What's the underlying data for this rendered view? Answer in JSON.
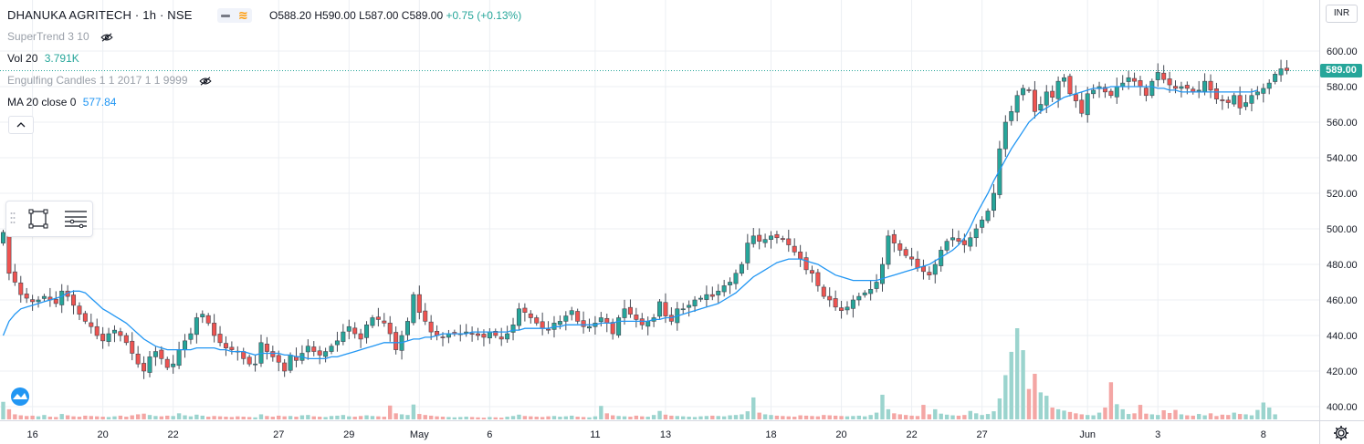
{
  "header": {
    "symbol": "DHANUKA AGRITECH · 1h · NSE",
    "ohlc": "O588.20  H590.00  L587.00  C589.00",
    "change": "+0.75 (+0.13%)"
  },
  "indicators": {
    "supertrend": "SuperTrend 3 10",
    "vol_label": "Vol 20",
    "vol_value": "3.791K",
    "engulfing": "Engulfing Candles 1 1 2017 1 1 9999",
    "ma_label": "MA 20 close 0",
    "ma_value": "577.84"
  },
  "currency": "INR",
  "last_price": "589.00",
  "colors": {
    "up": "#26a69a",
    "down": "#ef5350",
    "ma_line": "#2196f3",
    "vol_up": "#9bd4ce",
    "vol_down": "#f4a6a4",
    "grid": "#eceff3"
  },
  "icons": [
    "eye-hidden-icon",
    "rectangle-tool-icon",
    "lines-tool-icon",
    "chevron-up-icon",
    "gear-icon",
    "tradingview-logo-icon"
  ],
  "chart_data": {
    "type": "candlestick",
    "y_axis": {
      "ticks": [
        600,
        580,
        560,
        540,
        520,
        500,
        480,
        460,
        440,
        420,
        400
      ],
      "tick_labels": [
        "600.00",
        "580.00",
        "560.00",
        "540.00",
        "520.00",
        "500.00",
        "480.00",
        "460.00",
        "440.00",
        "420.00",
        "400.00"
      ],
      "range": [
        396,
        612
      ]
    },
    "x_axis": {
      "tick_labels": [
        "16",
        "20",
        "22",
        "27",
        "29",
        "May",
        "6",
        "11",
        "13",
        "18",
        "20",
        "22",
        "27",
        "Jun",
        "3",
        "8"
      ],
      "tick_index": [
        5,
        17,
        29,
        47,
        59,
        71,
        83,
        101,
        113,
        131,
        143,
        155,
        167,
        185,
        197,
        215
      ]
    },
    "closes": [
      498,
      475,
      470,
      463,
      461,
      459,
      460,
      462,
      460,
      458,
      465,
      462,
      457,
      452,
      448,
      445,
      440,
      437,
      441,
      443,
      440,
      436,
      430,
      424,
      420,
      428,
      431,
      427,
      422,
      424,
      432,
      437,
      441,
      450,
      452,
      447,
      440,
      436,
      433,
      432,
      431,
      427,
      424,
      424,
      436,
      431,
      428,
      425,
      420,
      429,
      426,
      430,
      434,
      431,
      429,
      431,
      434,
      437,
      442,
      445,
      441,
      438,
      446,
      450,
      449,
      447,
      441,
      432,
      440,
      448,
      463,
      453,
      448,
      442,
      440,
      439,
      441,
      441,
      441,
      442,
      441,
      440,
      439,
      442,
      440,
      438,
      441,
      446,
      455,
      453,
      450,
      447,
      444,
      443,
      447,
      448,
      451,
      454,
      448,
      445,
      445,
      447,
      450,
      447,
      441,
      450,
      455,
      452,
      449,
      446,
      448,
      450,
      459,
      451,
      448,
      455,
      455,
      457,
      460,
      461,
      463,
      462,
      465,
      468,
      470,
      475,
      480,
      492,
      496,
      493,
      494,
      496,
      495,
      494,
      491,
      487,
      483,
      477,
      475,
      468,
      462,
      460,
      456,
      454,
      456,
      460,
      462,
      464,
      466,
      470,
      480,
      496,
      492,
      488,
      485,
      483,
      478,
      476,
      474,
      480,
      488,
      493,
      495,
      493,
      491,
      495,
      500,
      505,
      510,
      520,
      545,
      560,
      566,
      575,
      579,
      578,
      566,
      570,
      577,
      574,
      583,
      585,
      576,
      572,
      565,
      576,
      578,
      580,
      577,
      575,
      580,
      582,
      585,
      583,
      580,
      575,
      583,
      588,
      584,
      581,
      579,
      580,
      579,
      577,
      578,
      583,
      578,
      573,
      572,
      571,
      575,
      568,
      571,
      575,
      577,
      579,
      582,
      587,
      590,
      589
    ],
    "ma20": [
      440,
      448,
      452,
      455,
      456,
      457,
      458,
      459,
      460,
      461,
      462,
      464,
      465,
      465,
      464,
      461,
      458,
      455,
      453,
      451,
      449,
      447,
      444,
      441,
      438,
      436,
      434,
      433,
      432,
      432,
      432,
      432,
      432,
      433,
      433,
      433,
      433,
      432,
      432,
      431,
      431,
      431,
      430,
      429,
      430,
      430,
      430,
      430,
      429,
      429,
      428,
      428,
      427,
      427,
      427,
      427,
      428,
      428,
      429,
      430,
      431,
      432,
      433,
      434,
      435,
      436,
      436,
      436,
      436,
      437,
      438,
      438,
      439,
      439,
      440,
      441,
      441,
      441,
      441,
      441,
      442,
      442,
      442,
      442,
      442,
      442,
      442,
      443,
      443,
      444,
      444,
      444,
      444,
      444,
      445,
      445,
      446,
      446,
      446,
      446,
      446,
      446,
      447,
      447,
      447,
      448,
      448,
      448,
      448,
      448,
      448,
      449,
      449,
      450,
      450,
      451,
      452,
      453,
      454,
      455,
      456,
      457,
      458,
      460,
      462,
      464,
      467,
      470,
      473,
      475,
      477,
      479,
      481,
      482,
      483,
      483,
      483,
      482,
      481,
      480,
      478,
      476,
      474,
      473,
      472,
      471,
      471,
      471,
      471,
      471,
      472,
      473,
      474,
      475,
      476,
      477,
      478,
      479,
      480,
      482,
      484,
      486,
      488,
      491,
      495,
      501,
      508,
      514,
      520,
      527,
      533,
      539,
      545,
      550,
      555,
      560,
      563,
      566,
      568,
      570,
      572,
      574,
      575,
      576,
      577,
      578,
      579,
      579,
      579,
      580,
      580,
      580,
      580,
      580,
      580,
      580,
      580,
      579,
      579,
      578,
      578,
      577,
      577,
      577,
      577,
      577,
      577,
      577,
      577,
      577,
      577,
      577,
      577,
      577,
      578
    ],
    "volumes": [
      5.2,
      3.0,
      1.5,
      1.2,
      1.0,
      1.1,
      0.9,
      1.3,
      0.8,
      0.7,
      1.6,
      1.2,
      0.9,
      0.8,
      1.1,
      1.0,
      0.9,
      0.8,
      0.7,
      0.9,
      1.1,
      0.8,
      1.2,
      1.5,
      1.7,
      1.3,
      1.0,
      0.9,
      1.1,
      1.0,
      1.8,
      1.2,
      0.9,
      1.4,
      1.1,
      0.8,
      1.0,
      0.9,
      0.8,
      0.7,
      0.9,
      0.8,
      0.7,
      0.6,
      1.5,
      1.0,
      0.8,
      1.1,
      0.9,
      1.0,
      0.8,
      1.2,
      1.3,
      0.9,
      0.8,
      0.7,
      1.0,
      1.1,
      1.3,
      0.9,
      0.8,
      1.0,
      1.2,
      1.0,
      0.9,
      0.8,
      4.1,
      1.8,
      1.5,
      1.3,
      4.4,
      1.6,
      1.3,
      1.1,
      0.9,
      0.8,
      0.7,
      0.6,
      0.7,
      0.8,
      0.7,
      0.6,
      0.5,
      0.7,
      0.6,
      0.5,
      0.8,
      1.0,
      1.4,
      1.0,
      0.9,
      0.8,
      0.7,
      0.9,
      1.0,
      0.8,
      0.9,
      1.1,
      0.8,
      0.7,
      0.6,
      0.9,
      4.0,
      1.8,
      1.2,
      1.0,
      0.9,
      0.8,
      1.1,
      0.9,
      0.8,
      1.3,
      2.5,
      1.4,
      1.1,
      1.0,
      0.9,
      0.8,
      0.7,
      0.9,
      1.0,
      1.1,
      1.0,
      0.9,
      1.2,
      1.3,
      1.5,
      2.4,
      6.5,
      2.0,
      1.5,
      1.3,
      1.1,
      1.0,
      0.9,
      0.8,
      1.2,
      1.1,
      1.0,
      0.9,
      1.3,
      1.2,
      1.1,
      1.0,
      0.9,
      1.0,
      1.1,
      0.9,
      1.3,
      2.0,
      7.3,
      3.0,
      1.8,
      1.5,
      1.3,
      1.1,
      1.0,
      4.3,
      1.5,
      3.0,
      1.7,
      1.4,
      1.2,
      1.1,
      1.3,
      2.5,
      1.8,
      1.3,
      1.6,
      2.4,
      6.2,
      13.1,
      20.0,
      27.0,
      20.5,
      9.0,
      13.5,
      8.0,
      7.0,
      3.5,
      3.0,
      2.6,
      2.2,
      1.8,
      1.5,
      1.3,
      1.2,
      2.0,
      3.5,
      11.0,
      4.5,
      3.0,
      1.6,
      1.8,
      4.3,
      1.7,
      1.5,
      1.3,
      2.7,
      1.9,
      2.8,
      1.5,
      1.2,
      1.1,
      1.6,
      1.2,
      1.8,
      1.0,
      1.4,
      1.3,
      2.0,
      1.6,
      1.5,
      1.2,
      2.8,
      5.0,
      3.5,
      1.5
    ]
  }
}
